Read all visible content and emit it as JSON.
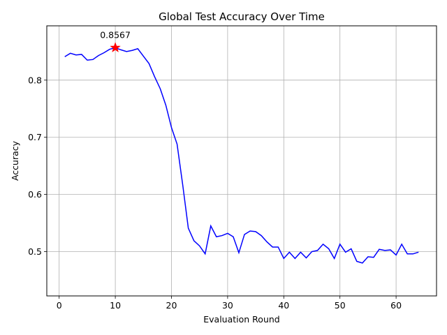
{
  "chart_data": {
    "type": "line",
    "title": "Global Test Accuracy Over Time",
    "xlabel": "Evaluation Round",
    "ylabel": "Accuracy",
    "xlim": [
      -2.2,
      67.2
    ],
    "ylim": [
      0.4225,
      0.895
    ],
    "xticks": [
      0,
      10,
      20,
      30,
      40,
      50,
      60
    ],
    "yticks": [
      0.5,
      0.6,
      0.7,
      0.8
    ],
    "ytick_labels": [
      "0.5",
      "0.6",
      "0.7",
      "0.8"
    ],
    "grid": true,
    "series": [
      {
        "color": "#0000ff",
        "x": [
          1,
          2,
          3,
          4,
          5,
          6,
          7,
          8,
          9,
          10,
          11,
          12,
          13,
          14,
          15,
          16,
          17,
          18,
          19,
          20,
          21,
          22,
          23,
          24,
          25,
          26,
          27,
          28,
          29,
          30,
          31,
          32,
          33,
          34,
          35,
          36,
          37,
          38,
          39,
          40,
          41,
          42,
          43,
          44,
          45,
          46,
          47,
          48,
          49,
          50,
          51,
          52,
          53,
          54,
          55,
          56,
          57,
          58,
          59,
          60,
          61,
          62,
          63,
          64
        ],
        "y": [
          0.841,
          0.847,
          0.844,
          0.845,
          0.835,
          0.836,
          0.843,
          0.848,
          0.854,
          0.8567,
          0.853,
          0.85,
          0.852,
          0.855,
          0.842,
          0.829,
          0.806,
          0.785,
          0.756,
          0.717,
          0.688,
          0.617,
          0.541,
          0.519,
          0.51,
          0.496,
          0.545,
          0.526,
          0.528,
          0.532,
          0.526,
          0.498,
          0.53,
          0.536,
          0.535,
          0.528,
          0.517,
          0.508,
          0.508,
          0.488,
          0.499,
          0.488,
          0.499,
          0.489,
          0.5,
          0.502,
          0.513,
          0.505,
          0.488,
          0.513,
          0.499,
          0.505,
          0.483,
          0.48,
          0.491,
          0.49,
          0.504,
          0.502,
          0.503,
          0.494,
          0.513,
          0.496,
          0.496,
          0.499
        ]
      }
    ],
    "highlight": {
      "x": 10,
      "y": 0.8567,
      "label": "0.8567",
      "color": "#ff0000",
      "marker": "star"
    }
  }
}
